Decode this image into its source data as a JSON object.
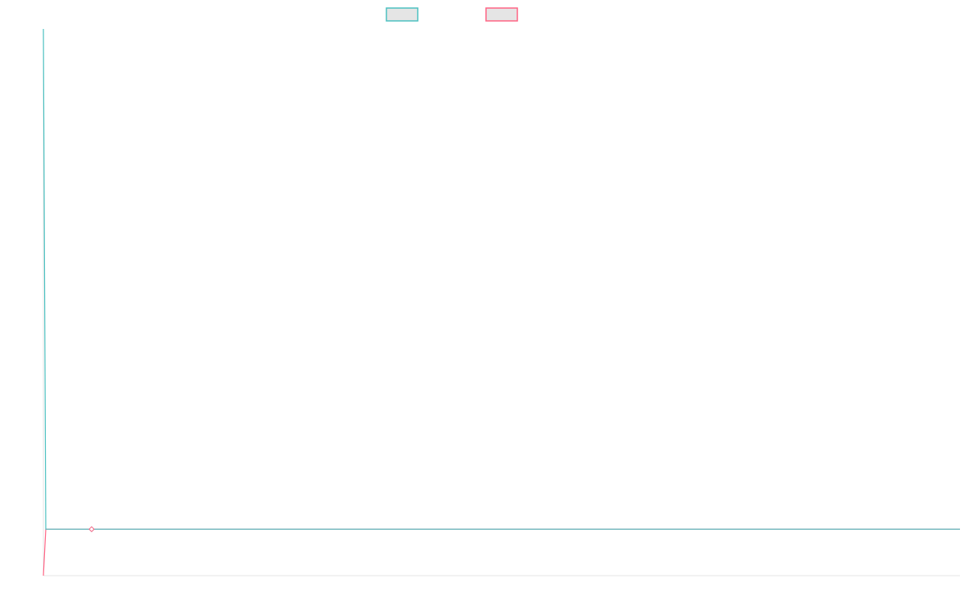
{
  "chart_data": {
    "type": "line",
    "title": "",
    "xlabel": "",
    "ylabel": "",
    "xlim": [
      0,
      380
    ],
    "ylim": [
      0,
      100
    ],
    "grid": false,
    "legend": "top",
    "series": [
      {
        "color": "#4bc0c0",
        "x": [
          0,
          1,
          20,
          380
        ],
        "y": [
          100,
          8.5,
          8.5,
          8.5
        ],
        "marker_at": 20
      },
      {
        "color": "#ff6384",
        "x": [
          0,
          1,
          20,
          380
        ],
        "y": [
          0,
          8.5,
          8.5,
          8.5
        ],
        "marker_at": 20
      }
    ]
  }
}
